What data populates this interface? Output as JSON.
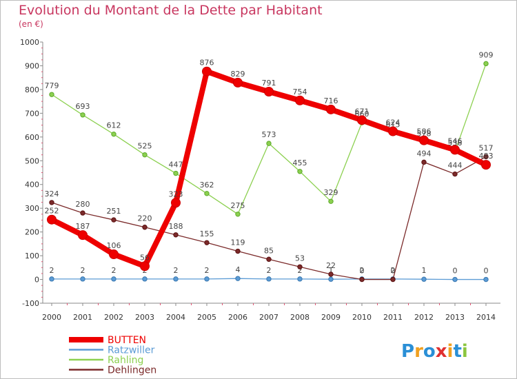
{
  "header": {
    "title": "Evolution du Montant de la Dette par Habitant",
    "unit": "(en €)"
  },
  "logo": {
    "text": "Proxiti",
    "letters": [
      "P",
      "r",
      "o",
      "x",
      "i",
      "t",
      "i"
    ],
    "letter_colors": [
      "#2a8fd6",
      "#f0a020",
      "#2a8fd6",
      "#e03030",
      "#f0a020",
      "#2a8fd6",
      "#8cc63f"
    ]
  },
  "chart_data": {
    "type": "line",
    "x": [
      2000,
      2001,
      2002,
      2003,
      2004,
      2005,
      2006,
      2007,
      2008,
      2009,
      2010,
      2011,
      2012,
      2013,
      2014
    ],
    "ylim": [
      -100,
      1000
    ],
    "yticks": [
      -100,
      0,
      100,
      200,
      300,
      400,
      500,
      600,
      700,
      800,
      900,
      1000
    ],
    "grid": false,
    "legend_placement": "bottom-left",
    "series": [
      {
        "name": "BUTTEN",
        "color": "#ee0000",
        "emphasis": true,
        "values": [
          252,
          187,
          106,
          56,
          323,
          876,
          829,
          791,
          754,
          716,
          671,
          624,
          586,
          546,
          483
        ]
      },
      {
        "name": "Ratzwiller",
        "color": "#5b9bd5",
        "emphasis": false,
        "values": [
          2,
          2,
          2,
          2,
          2,
          2,
          4,
          2,
          2,
          1,
          2,
          2,
          1,
          0,
          0
        ]
      },
      {
        "name": "Rahling",
        "color": "#8cd050",
        "emphasis": false,
        "values": [
          779,
          693,
          612,
          525,
          447,
          362,
          275,
          573,
          455,
          329,
          660,
          615,
          578,
          538,
          909
        ]
      },
      {
        "name": "Dehlingen",
        "color": "#7b2a2a",
        "emphasis": false,
        "values": [
          324,
          280,
          251,
          220,
          188,
          155,
          119,
          85,
          53,
          22,
          0,
          0,
          494,
          444,
          517
        ]
      }
    ]
  }
}
